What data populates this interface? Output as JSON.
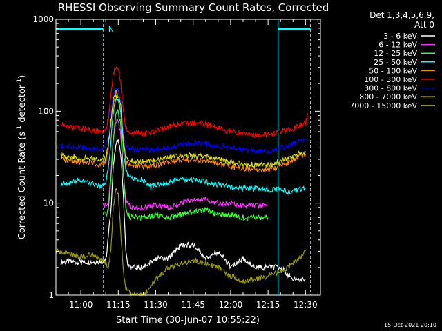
{
  "chart_data": {
    "type": "line",
    "title": "RHESSI Observing Summary Count Rates, Corrected",
    "xlabel": "Start Time (30-Jun-07 10:55:22)",
    "ylabel_main": "Corrected Count Rate (s",
    "ylabel_sup1": "-1",
    "ylabel_mid": " detector",
    "ylabel_sup2": "-1",
    "ylabel_end": ")",
    "yscale": "log",
    "ylim": [
      1,
      1000
    ],
    "xlim": [
      -10,
      96
    ],
    "x_units": "minutes after 11:00",
    "yticks": [
      {
        "value": 1,
        "label": "1"
      },
      {
        "value": 10,
        "label": "10"
      },
      {
        "value": 100,
        "label": "100"
      },
      {
        "value": 1000,
        "label": "1000"
      }
    ],
    "xticks": [
      {
        "value": 0,
        "label": "11:00"
      },
      {
        "value": 15,
        "label": "11:15"
      },
      {
        "value": 30,
        "label": "11:30"
      },
      {
        "value": 45,
        "label": "11:45"
      },
      {
        "value": 60,
        "label": "12:00"
      },
      {
        "value": 75,
        "label": "12:15"
      },
      {
        "value": 90,
        "label": "12:30"
      }
    ],
    "legend_header": [
      "Det 1,3,4,5,6,9,",
      "Att 0"
    ],
    "timestamp": "15-Oct-2021 20:10",
    "annotations": {
      "night_bars": [
        [
          -10,
          9
        ],
        [
          79,
          92
        ]
      ],
      "saa_lines": [
        9,
        79,
        92
      ],
      "marker_label": "N",
      "marker_x": 11
    },
    "series": [
      {
        "name": "3 - 6 keV",
        "color": "#ffffff",
        "points": [
          [
            -8,
            2.3
          ],
          [
            0,
            2.3
          ],
          [
            8,
            2.3
          ],
          [
            10,
            2.4
          ],
          [
            12,
            8
          ],
          [
            13,
            25
          ],
          [
            14,
            45
          ],
          [
            15,
            48
          ],
          [
            16,
            35
          ],
          [
            17,
            12
          ],
          [
            18,
            3
          ],
          [
            19,
            2
          ],
          [
            25,
            2
          ],
          [
            30,
            2.5
          ],
          [
            35,
            2.5
          ],
          [
            40,
            3.5
          ],
          [
            45,
            3.5
          ],
          [
            50,
            2.5
          ],
          [
            55,
            3
          ],
          [
            60,
            2
          ],
          [
            65,
            2.5
          ],
          [
            70,
            2
          ],
          [
            75,
            2
          ],
          [
            80,
            2
          ],
          [
            85,
            1.5
          ],
          [
            88,
            1.5
          ],
          [
            90,
            1.5
          ]
        ]
      },
      {
        "name": "6 - 12 keV",
        "color": "#ff33ff",
        "points": [
          [
            9,
            9.5
          ],
          [
            11,
            10
          ],
          [
            12,
            20
          ],
          [
            13,
            50
          ],
          [
            14,
            78
          ],
          [
            15,
            80
          ],
          [
            16,
            55
          ],
          [
            17,
            20
          ],
          [
            18,
            11
          ],
          [
            19,
            9.5
          ],
          [
            20,
            9
          ],
          [
            25,
            9
          ],
          [
            30,
            9.5
          ],
          [
            35,
            9
          ],
          [
            40,
            10
          ],
          [
            45,
            11
          ],
          [
            50,
            11
          ],
          [
            55,
            10
          ],
          [
            60,
            10
          ],
          [
            65,
            9.5
          ],
          [
            70,
            9.5
          ],
          [
            73,
            9.5
          ],
          [
            75,
            9.5
          ]
        ]
      },
      {
        "name": "12 - 25 keV",
        "color": "#33ff33",
        "points": [
          [
            9,
            7.5
          ],
          [
            11,
            8
          ],
          [
            12,
            18
          ],
          [
            13,
            50
          ],
          [
            14,
            95
          ],
          [
            15,
            100
          ],
          [
            16,
            70
          ],
          [
            17,
            22
          ],
          [
            18,
            9
          ],
          [
            19,
            7.5
          ],
          [
            20,
            7
          ],
          [
            25,
            7
          ],
          [
            30,
            7.5
          ],
          [
            35,
            7
          ],
          [
            40,
            7.5
          ],
          [
            45,
            8
          ],
          [
            50,
            8.5
          ],
          [
            55,
            7.5
          ],
          [
            60,
            7.5
          ],
          [
            65,
            7
          ],
          [
            70,
            7
          ],
          [
            73,
            7
          ],
          [
            75,
            7
          ]
        ]
      },
      {
        "name": "25 - 50 keV",
        "color": "#00ffff",
        "points": [
          [
            -8,
            16
          ],
          [
            -2,
            17
          ],
          [
            0,
            18
          ],
          [
            5,
            16
          ],
          [
            8,
            15
          ],
          [
            10,
            17
          ],
          [
            11,
            25
          ],
          [
            12,
            45
          ],
          [
            13,
            100
          ],
          [
            14,
            130
          ],
          [
            15,
            140
          ],
          [
            16,
            100
          ],
          [
            17,
            40
          ],
          [
            18,
            22
          ],
          [
            19,
            20
          ],
          [
            20,
            19
          ],
          [
            25,
            18
          ],
          [
            28,
            15
          ],
          [
            30,
            16
          ],
          [
            35,
            17
          ],
          [
            40,
            18
          ],
          [
            45,
            18
          ],
          [
            50,
            17
          ],
          [
            55,
            16
          ],
          [
            60,
            15
          ],
          [
            65,
            14.5
          ],
          [
            70,
            14.5
          ],
          [
            75,
            14
          ],
          [
            78,
            14
          ],
          [
            80,
            14.5
          ],
          [
            84,
            13
          ],
          [
            87,
            14
          ],
          [
            90,
            14.5
          ]
        ]
      },
      {
        "name": "50 - 100 keV",
        "color": "#ff8800",
        "points": [
          [
            -8,
            30
          ],
          [
            0,
            28
          ],
          [
            5,
            27
          ],
          [
            8,
            26
          ],
          [
            10,
            28
          ],
          [
            11,
            40
          ],
          [
            12,
            70
          ],
          [
            13,
            120
          ],
          [
            14,
            165
          ],
          [
            15,
            170
          ],
          [
            16,
            130
          ],
          [
            17,
            50
          ],
          [
            18,
            28
          ],
          [
            19,
            27
          ],
          [
            20,
            26
          ],
          [
            25,
            25
          ],
          [
            30,
            26
          ],
          [
            35,
            28
          ],
          [
            40,
            30
          ],
          [
            45,
            30
          ],
          [
            50,
            29
          ],
          [
            55,
            27
          ],
          [
            60,
            25
          ],
          [
            65,
            24
          ],
          [
            70,
            23
          ],
          [
            75,
            23
          ],
          [
            78,
            24
          ],
          [
            80,
            26
          ],
          [
            84,
            28
          ],
          [
            87,
            32
          ],
          [
            90,
            34
          ]
        ]
      },
      {
        "name": "100 - 300 keV",
        "color": "#ff0000",
        "points": [
          [
            -8,
            72
          ],
          [
            -5,
            68
          ],
          [
            0,
            65
          ],
          [
            5,
            62
          ],
          [
            8,
            60
          ],
          [
            10,
            62
          ],
          [
            11,
            85
          ],
          [
            12,
            150
          ],
          [
            13,
            260
          ],
          [
            14,
            300
          ],
          [
            15,
            280
          ],
          [
            16,
            200
          ],
          [
            17,
            100
          ],
          [
            18,
            65
          ],
          [
            19,
            62
          ],
          [
            20,
            60
          ],
          [
            25,
            57
          ],
          [
            30,
            60
          ],
          [
            35,
            68
          ],
          [
            40,
            75
          ],
          [
            45,
            75
          ],
          [
            50,
            72
          ],
          [
            55,
            66
          ],
          [
            60,
            60
          ],
          [
            65,
            57
          ],
          [
            70,
            55
          ],
          [
            75,
            56
          ],
          [
            78,
            58
          ],
          [
            80,
            60
          ],
          [
            84,
            63
          ],
          [
            87,
            68
          ],
          [
            90,
            75
          ],
          [
            91,
            95
          ]
        ]
      },
      {
        "name": "300 - 800 keV",
        "color": "#0000ff",
        "points": [
          [
            -8,
            42
          ],
          [
            0,
            40
          ],
          [
            5,
            39
          ],
          [
            8,
            38
          ],
          [
            10,
            40
          ],
          [
            11,
            55
          ],
          [
            12,
            95
          ],
          [
            13,
            160
          ],
          [
            14,
            180
          ],
          [
            15,
            175
          ],
          [
            16,
            130
          ],
          [
            17,
            60
          ],
          [
            18,
            42
          ],
          [
            19,
            40
          ],
          [
            20,
            39
          ],
          [
            25,
            38
          ],
          [
            30,
            38
          ],
          [
            35,
            40
          ],
          [
            40,
            44
          ],
          [
            45,
            45
          ],
          [
            50,
            44
          ],
          [
            55,
            42
          ],
          [
            60,
            40
          ],
          [
            65,
            38
          ],
          [
            70,
            37
          ],
          [
            75,
            37
          ],
          [
            78,
            38
          ],
          [
            80,
            40
          ],
          [
            84,
            43
          ],
          [
            87,
            46
          ],
          [
            90,
            50
          ]
        ]
      },
      {
        "name": "800 - 7000 keV",
        "color": "#dddd00",
        "points": [
          [
            -8,
            33
          ],
          [
            0,
            31
          ],
          [
            5,
            30
          ],
          [
            8,
            29
          ],
          [
            10,
            31
          ],
          [
            11,
            45
          ],
          [
            12,
            78
          ],
          [
            13,
            130
          ],
          [
            14,
            150
          ],
          [
            15,
            145
          ],
          [
            16,
            110
          ],
          [
            17,
            45
          ],
          [
            18,
            31
          ],
          [
            19,
            30
          ],
          [
            20,
            29
          ],
          [
            25,
            28
          ],
          [
            30,
            29
          ],
          [
            35,
            31
          ],
          [
            40,
            33
          ],
          [
            45,
            33
          ],
          [
            50,
            32
          ],
          [
            55,
            30
          ],
          [
            60,
            28
          ],
          [
            65,
            27
          ],
          [
            70,
            26
          ],
          [
            75,
            26
          ],
          [
            78,
            27
          ],
          [
            80,
            29
          ],
          [
            84,
            31
          ],
          [
            87,
            34
          ],
          [
            90,
            36
          ]
        ]
      },
      {
        "name": "7000 - 15000 keV",
        "color": "#999900",
        "points": [
          [
            -10,
            3
          ],
          [
            -5,
            2.8
          ],
          [
            0,
            2.6
          ],
          [
            5,
            2.8
          ],
          [
            8,
            2.5
          ],
          [
            10,
            2.2
          ],
          [
            11,
            2
          ],
          [
            12,
            3
          ],
          [
            13,
            9
          ],
          [
            14,
            14
          ],
          [
            15,
            12
          ],
          [
            16,
            5
          ],
          [
            17,
            1.8
          ],
          [
            18,
            1.2
          ],
          [
            20,
            1
          ],
          [
            25,
            1
          ],
          [
            30,
            1.5
          ],
          [
            35,
            2
          ],
          [
            40,
            2.2
          ],
          [
            45,
            2.4
          ],
          [
            50,
            2.2
          ],
          [
            55,
            2
          ],
          [
            60,
            1.6
          ],
          [
            65,
            1.4
          ],
          [
            70,
            1.5
          ],
          [
            75,
            1.6
          ],
          [
            80,
            1.8
          ],
          [
            85,
            2.2
          ],
          [
            88,
            2.6
          ],
          [
            90,
            3
          ]
        ]
      }
    ]
  }
}
